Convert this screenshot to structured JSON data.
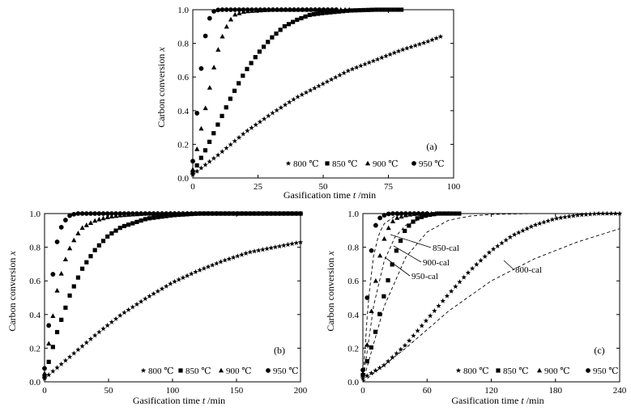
{
  "figure": {
    "panels": [
      {
        "id": "a",
        "label": "(a)"
      },
      {
        "id": "b",
        "label": "(b)"
      },
      {
        "id": "c",
        "label": "(c)"
      }
    ]
  },
  "chart_data": [
    {
      "type": "scatter",
      "panel": "(a)",
      "xlabel": "Gasification time",
      "xlabel_var": "t",
      "xlabel_unit": "/min",
      "ylabel": "Carbon conversion",
      "ylabel_var": "x",
      "xlim": [
        0,
        100
      ],
      "ylim": [
        0,
        1.0
      ],
      "xticks": [
        "0",
        "25",
        "50",
        "75",
        "100"
      ],
      "yticks": [
        "0.0",
        "0.2",
        "0.4",
        "0.6",
        "0.8",
        "1.0"
      ],
      "legend": [
        "800 ℃",
        "850 ℃",
        "900 ℃",
        "950 ℃"
      ],
      "series": [
        {
          "name": "800 ℃",
          "marker": "star",
          "t_end": 95,
          "x": [
            0,
            10,
            20,
            30,
            40,
            50,
            60,
            70,
            80,
            90,
            95
          ],
          "y": [
            0.02,
            0.14,
            0.27,
            0.38,
            0.48,
            0.56,
            0.64,
            0.7,
            0.76,
            0.81,
            0.84
          ]
        },
        {
          "name": "850 ℃",
          "marker": "square",
          "t_end": 80,
          "x": [
            0,
            5,
            10,
            15,
            20,
            25,
            30,
            35,
            40,
            45,
            50,
            60,
            70,
            80
          ],
          "y": [
            0.03,
            0.17,
            0.33,
            0.49,
            0.63,
            0.74,
            0.83,
            0.9,
            0.94,
            0.97,
            0.98,
            0.995,
            1.0,
            1.0
          ]
        },
        {
          "name": "900 ℃",
          "marker": "triangle",
          "t_end": 60,
          "x": [
            0,
            2,
            4,
            6,
            8,
            10,
            12,
            14,
            16,
            20,
            30,
            40,
            60
          ],
          "y": [
            0.05,
            0.2,
            0.35,
            0.5,
            0.65,
            0.78,
            0.87,
            0.93,
            0.97,
            0.99,
            1.0,
            1.0,
            1.0
          ]
        },
        {
          "name": "950 ℃",
          "marker": "circle",
          "t_end": 55,
          "x": [
            0,
            1,
            2,
            3,
            4,
            5,
            6,
            7,
            8,
            10,
            15,
            30,
            55
          ],
          "y": [
            0.1,
            0.28,
            0.45,
            0.62,
            0.75,
            0.86,
            0.93,
            0.97,
            0.99,
            1.0,
            1.0,
            1.0,
            1.0
          ]
        }
      ]
    },
    {
      "type": "scatter",
      "panel": "(b)",
      "xlabel": "Gasification time",
      "xlabel_var": "t",
      "xlabel_unit": "/min",
      "ylabel": "Carbon conversion",
      "ylabel_var": "x",
      "xlim": [
        0,
        200
      ],
      "ylim": [
        0,
        1.0
      ],
      "xticks": [
        "0",
        "50",
        "100",
        "150",
        "200"
      ],
      "yticks": [
        "0.0",
        "0.2",
        "0.4",
        "0.6",
        "0.8",
        "1.0"
      ],
      "legend": [
        "800 ℃",
        "850 ℃",
        "900 ℃",
        "950 ℃"
      ],
      "series": [
        {
          "name": "800 ℃",
          "marker": "star",
          "t_end": 200,
          "x": [
            0,
            20,
            40,
            60,
            80,
            100,
            120,
            140,
            160,
            180,
            200
          ],
          "y": [
            0.02,
            0.15,
            0.28,
            0.4,
            0.5,
            0.59,
            0.66,
            0.72,
            0.77,
            0.8,
            0.83
          ]
        },
        {
          "name": "850 ℃",
          "marker": "square",
          "t_end": 200,
          "x": [
            0,
            10,
            20,
            30,
            40,
            50,
            60,
            80,
            100,
            120,
            150,
            200
          ],
          "y": [
            0.03,
            0.3,
            0.52,
            0.68,
            0.79,
            0.87,
            0.92,
            0.97,
            0.99,
            1.0,
            1.0,
            1.0
          ]
        },
        {
          "name": "900 ℃",
          "marker": "triangle",
          "t_end": 200,
          "x": [
            0,
            5,
            10,
            15,
            20,
            25,
            30,
            40,
            50,
            60,
            80,
            100,
            150,
            200
          ],
          "y": [
            0.05,
            0.32,
            0.55,
            0.7,
            0.8,
            0.87,
            0.92,
            0.96,
            0.98,
            0.99,
            1.0,
            1.0,
            1.0,
            1.0
          ]
        },
        {
          "name": "950 ℃",
          "marker": "circle",
          "t_end": 200,
          "x": [
            0,
            2,
            4,
            6,
            8,
            10,
            12,
            15,
            20,
            25,
            30,
            50,
            100,
            200
          ],
          "y": [
            0.08,
            0.22,
            0.4,
            0.6,
            0.74,
            0.84,
            0.9,
            0.95,
            0.99,
            1.0,
            1.0,
            1.0,
            1.0,
            1.0
          ]
        }
      ]
    },
    {
      "type": "scatter",
      "panel": "(c)",
      "xlabel": "Gasification time",
      "xlabel_var": "t",
      "xlabel_unit": "/min",
      "ylabel": "Carbon conversion",
      "ylabel_var": "x",
      "xlim": [
        0,
        240
      ],
      "ylim": [
        0,
        1.0
      ],
      "xticks": [
        "0",
        "60",
        "120",
        "180",
        "240"
      ],
      "yticks": [
        "0.0",
        "0.2",
        "0.4",
        "0.6",
        "0.8",
        "1.0"
      ],
      "legend": [
        "800 ℃",
        "850 ℃",
        "900 ℃",
        "950 ℃"
      ],
      "series": [
        {
          "name": "800 ℃",
          "marker": "star",
          "t_end": 240,
          "x": [
            0,
            20,
            40,
            60,
            80,
            100,
            120,
            140,
            160,
            180,
            200,
            220,
            240
          ],
          "y": [
            0.02,
            0.1,
            0.22,
            0.37,
            0.52,
            0.66,
            0.78,
            0.87,
            0.93,
            0.97,
            0.99,
            1.0,
            1.0
          ]
        },
        {
          "name": "850 ℃",
          "marker": "square",
          "t_end": 90,
          "x": [
            0,
            10,
            20,
            30,
            40,
            50,
            60,
            70,
            80,
            90
          ],
          "y": [
            0.04,
            0.25,
            0.52,
            0.76,
            0.91,
            0.97,
            0.99,
            1.0,
            1.0,
            1.0
          ]
        },
        {
          "name": "900 ℃",
          "marker": "triangle",
          "t_end": 80,
          "x": [
            0,
            4,
            8,
            12,
            16,
            20,
            25,
            30,
            40,
            50,
            60,
            80
          ],
          "y": [
            0.05,
            0.22,
            0.42,
            0.6,
            0.75,
            0.85,
            0.93,
            0.97,
            0.99,
            1.0,
            1.0,
            1.0
          ]
        },
        {
          "name": "950 ℃",
          "marker": "circle",
          "t_end": 60,
          "x": [
            0,
            2,
            4,
            6,
            8,
            10,
            12,
            15,
            20,
            25,
            30,
            45,
            60
          ],
          "y": [
            0.07,
            0.3,
            0.5,
            0.66,
            0.78,
            0.87,
            0.93,
            0.97,
            0.99,
            1.0,
            1.0,
            1.0,
            1.0
          ]
        }
      ],
      "calculated_curves": [
        {
          "name": "800-cal",
          "x": [
            0,
            40,
            80,
            120,
            160,
            200,
            240
          ],
          "y": [
            0.0,
            0.2,
            0.42,
            0.6,
            0.73,
            0.83,
            0.91
          ]
        },
        {
          "name": "850-cal",
          "x": [
            0,
            20,
            40,
            60,
            80,
            100,
            120,
            160,
            200,
            240
          ],
          "y": [
            0.0,
            0.45,
            0.74,
            0.89,
            0.96,
            0.985,
            0.995,
            1.0,
            1.0,
            1.0
          ]
        },
        {
          "name": "900-cal",
          "x": [
            0,
            10,
            20,
            30,
            40,
            60,
            80,
            100,
            140
          ],
          "y": [
            0.0,
            0.45,
            0.72,
            0.86,
            0.93,
            0.985,
            1.0,
            1.0,
            1.0
          ]
        },
        {
          "name": "950-cal",
          "x": [
            0,
            5,
            10,
            15,
            20,
            30,
            40,
            60,
            80
          ],
          "y": [
            0.0,
            0.48,
            0.75,
            0.88,
            0.94,
            0.985,
            1.0,
            1.0,
            1.0
          ]
        }
      ]
    }
  ]
}
